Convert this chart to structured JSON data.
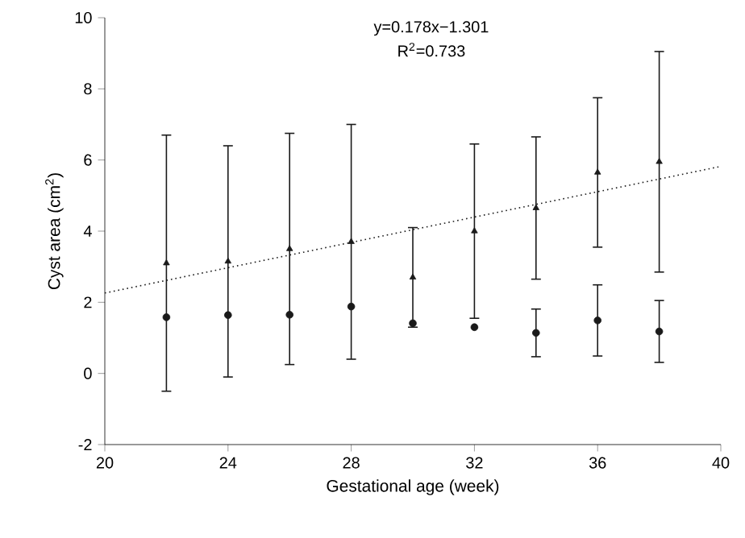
{
  "chart_data": {
    "type": "scatter",
    "xlabel": "Gestational age (week)",
    "ylabel": "Cyst area (cm$^{2}$)",
    "x": [
      22,
      24,
      26,
      28,
      30,
      32,
      34,
      36,
      38
    ],
    "series": [
      {
        "color": "#1a1a1a",
        "marker": "triangle",
        "values": [
          3.1,
          3.15,
          3.5,
          3.7,
          2.7,
          4.0,
          4.65,
          5.65,
          5.95
        ],
        "errors": [
          3.6,
          3.25,
          3.25,
          3.3,
          1.4,
          2.45,
          2.0,
          2.1,
          3.1
        ]
      },
      {
        "color": "#1a1a1a",
        "marker": "circle",
        "values": [
          1.58,
          1.64,
          1.65,
          1.88,
          1.41,
          1.3,
          1.14,
          1.49,
          1.18
        ],
        "errors": [
          null,
          null,
          null,
          null,
          null,
          null,
          0.67,
          1.0,
          0.87
        ]
      },
      {
        "type": "line",
        "color": "#1a1a1a",
        "marker": "none",
        "line_style": "dotted",
        "x": [
          20,
          40
        ],
        "values": [
          2.26,
          5.82
        ]
      }
    ],
    "annotations": [
      "y=0.178x−1.301",
      "R$^{2}$=0.733"
    ],
    "xlim": [
      20,
      40
    ],
    "xticks": [
      20,
      24,
      28,
      32,
      36,
      40
    ],
    "ylim": [
      -2,
      10
    ],
    "yticks": [
      -2,
      0,
      2,
      4,
      6,
      8,
      10
    ]
  }
}
